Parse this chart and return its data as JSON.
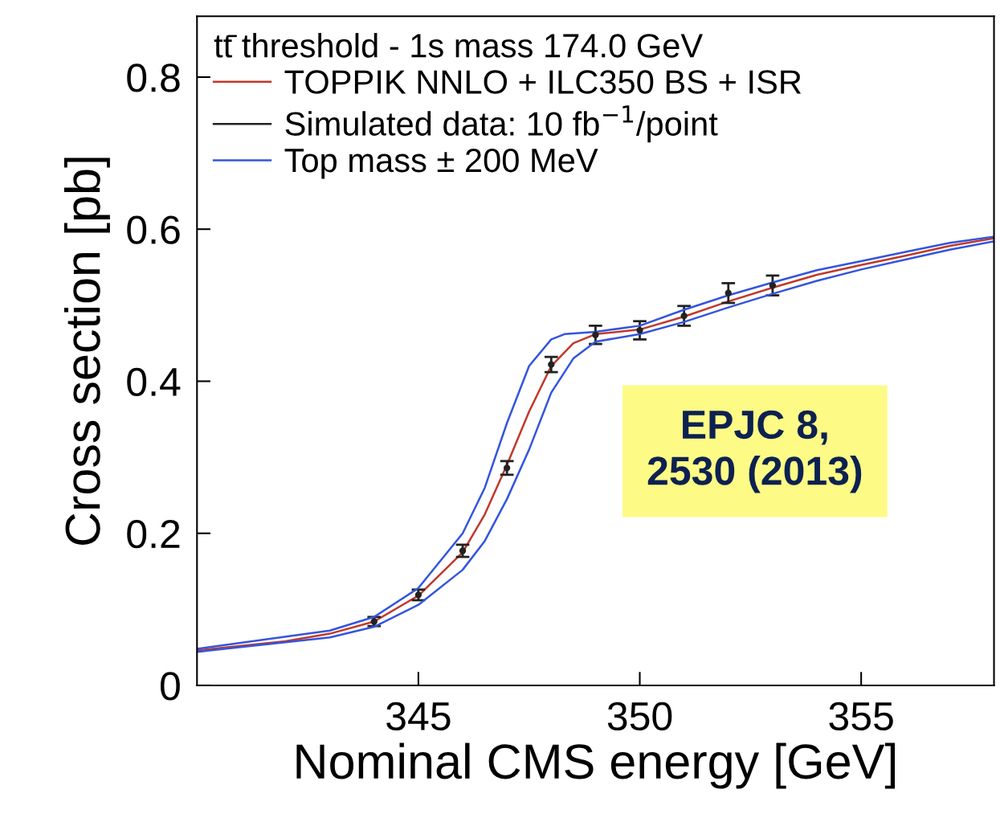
{
  "chart_data": {
    "type": "line",
    "xlabel": "Nominal CMS energy [GeV]",
    "ylabel": "Cross section [pb]",
    "legend_title": "tt̄ threshold - 1s mass 174.0 GeV",
    "xlim": [
      340,
      358
    ],
    "ylim": [
      0,
      0.88
    ],
    "xticks": [
      345,
      350,
      355
    ],
    "yticks": [
      {
        "value": 0,
        "label": "0"
      },
      0.2,
      0.4,
      0.6,
      0.8
    ],
    "grid": false,
    "legend": "top left",
    "line_style": "solid",
    "series": [
      {
        "name": "TOPPIK NNLO + ILC350 BS + ISR",
        "color": "#c0392b",
        "x": [
          340,
          342,
          343,
          344,
          345,
          346,
          346.5,
          347,
          347.5,
          348,
          348.5,
          349,
          350,
          351,
          352,
          353,
          354,
          355,
          356,
          357,
          358
        ],
        "values": [
          0.046,
          0.058,
          0.068,
          0.084,
          0.118,
          0.175,
          0.225,
          0.29,
          0.36,
          0.42,
          0.45,
          0.462,
          0.468,
          0.485,
          0.505,
          0.523,
          0.54,
          0.553,
          0.565,
          0.578,
          0.588
        ]
      },
      {
        "name": "Simulated data: 10 fb$^{−1}$/point",
        "color": "#222222",
        "type": "scatter",
        "marker": "circle",
        "x": [
          344,
          345,
          346,
          347,
          348,
          349,
          350,
          351,
          352,
          353
        ],
        "values": [
          0.084,
          0.119,
          0.177,
          0.286,
          0.422,
          0.461,
          0.467,
          0.486,
          0.516,
          0.526
        ],
        "errors": [
          0.006,
          0.007,
          0.008,
          0.009,
          0.01,
          0.012,
          0.012,
          0.013,
          0.013,
          0.013
        ]
      },
      {
        "name": "Top mass ± 200 MeV",
        "color": "#3355dd",
        "x": [
          340,
          343,
          344,
          345,
          346,
          346.5,
          347,
          347.5,
          348,
          348.3,
          349,
          350,
          351,
          352,
          353,
          354,
          355,
          356,
          357,
          358
        ],
        "values": [
          0.048,
          0.072,
          0.09,
          0.128,
          0.2,
          0.26,
          0.345,
          0.42,
          0.455,
          0.462,
          0.465,
          0.473,
          0.494,
          0.513,
          0.53,
          0.546,
          0.558,
          0.57,
          0.582,
          0.59
        ]
      },
      {
        "color": "#3355dd",
        "x": [
          340,
          343,
          344,
          345,
          346,
          346.5,
          347,
          347.5,
          348,
          348.5,
          349,
          350,
          351,
          352,
          353,
          354,
          355,
          356,
          357,
          358
        ],
        "values": [
          0.044,
          0.063,
          0.077,
          0.106,
          0.152,
          0.19,
          0.245,
          0.31,
          0.385,
          0.43,
          0.452,
          0.462,
          0.478,
          0.497,
          0.515,
          0.532,
          0.547,
          0.56,
          0.573,
          0.584
        ]
      }
    ],
    "annotations": [
      "EPJC 8,\n2530 (2013)"
    ]
  }
}
